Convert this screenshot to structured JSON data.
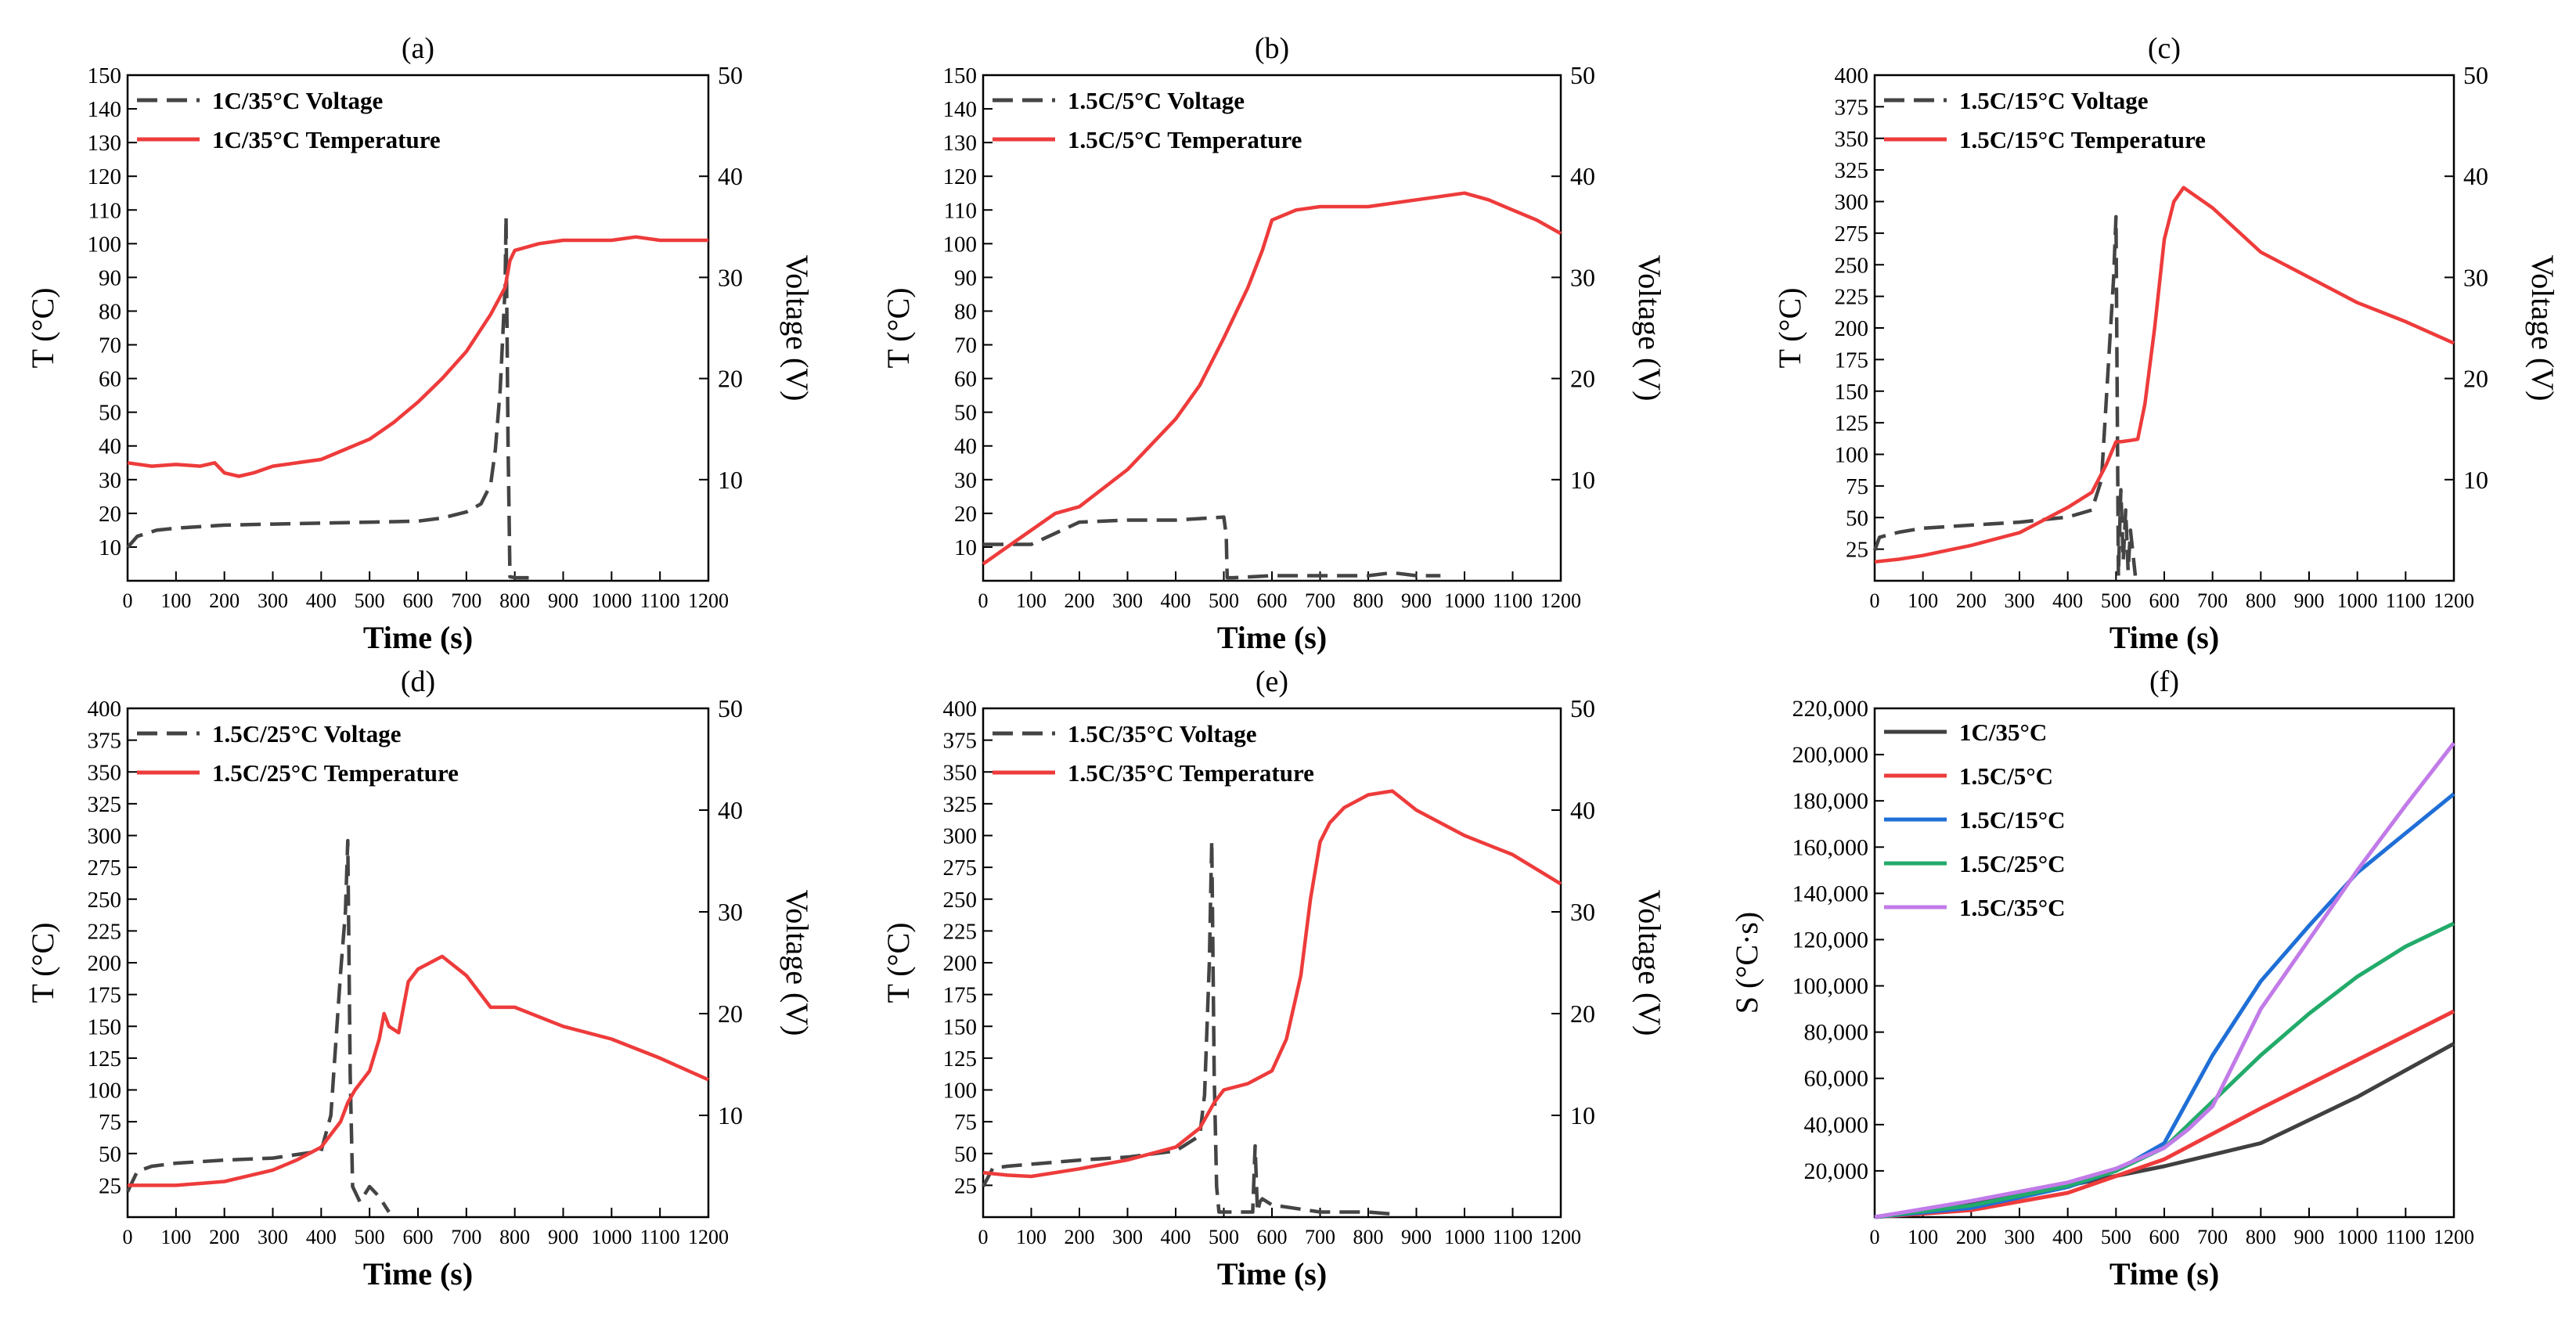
{
  "figure": {
    "colors": {
      "voltage": "#444444",
      "temperature": "#ee3b3b",
      "s35c_1c": "#404040",
      "s5c": "#ee3b3b",
      "s15c": "#1f6fd6",
      "s25c": "#22ab6a",
      "s35c": "#c17be8"
    }
  },
  "chart_data": [
    {
      "id": "a",
      "panel": "(a)",
      "type": "line",
      "title": "(a)",
      "xlabel": "Time (s)",
      "ylabel": "T (°C)",
      "y2label": "Voltage (V)",
      "xlim": [
        0,
        1200
      ],
      "ylim": [
        0,
        150
      ],
      "y2lim": [
        0,
        50
      ],
      "xticks": [
        "0",
        "100",
        "200",
        "300",
        "400",
        "500",
        "600",
        "700",
        "800",
        "900",
        "1000",
        "1100",
        "1200"
      ],
      "yticks": [
        "10",
        "20",
        "30",
        "40",
        "50",
        "60",
        "70",
        "80",
        "90",
        "100",
        "110",
        "120",
        "130",
        "140",
        "150"
      ],
      "y2ticks": [
        "10",
        "20",
        "30",
        "40",
        "50"
      ],
      "legend": [
        "1C/35°C Voltage",
        "1C/35°C Temperature"
      ],
      "series": [
        {
          "name": "1C/35°C Voltage",
          "axis": "right",
          "style": "dashed",
          "color": "#444444",
          "x": [
            0,
            20,
            60,
            100,
            200,
            300,
            400,
            500,
            600,
            650,
            700,
            730,
            750,
            760,
            770,
            775,
            780,
            782,
            786,
            790,
            800,
            830
          ],
          "y": [
            3.3,
            4.4,
            5.0,
            5.2,
            5.5,
            5.6,
            5.7,
            5.8,
            5.9,
            6.2,
            6.8,
            7.6,
            9.5,
            13,
            19,
            24,
            29,
            36,
            14,
            0.4,
            0.3,
            0.3
          ]
        },
        {
          "name": "1C/35°C Temperature",
          "axis": "left",
          "style": "solid",
          "color": "#ee3b3b",
          "x": [
            0,
            50,
            100,
            150,
            180,
            200,
            230,
            260,
            300,
            350,
            400,
            450,
            500,
            550,
            600,
            650,
            700,
            750,
            780,
            790,
            800,
            850,
            900,
            1000,
            1050,
            1100,
            1200
          ],
          "y": [
            35,
            34,
            34.5,
            34,
            35,
            32,
            31,
            32,
            34,
            35,
            36,
            39,
            42,
            47,
            53,
            60,
            68,
            79,
            87,
            95,
            98,
            100,
            101,
            101,
            102,
            101,
            101
          ]
        }
      ]
    },
    {
      "id": "b",
      "panel": "(b)",
      "type": "line",
      "title": "(b)",
      "xlabel": "Time (s)",
      "ylabel": "T (°C)",
      "y2label": "Voltage (V)",
      "xlim": [
        0,
        1200
      ],
      "ylim": [
        0,
        150
      ],
      "y2lim": [
        0,
        50
      ],
      "xticks": [
        "0",
        "100",
        "200",
        "300",
        "400",
        "500",
        "600",
        "700",
        "800",
        "900",
        "1000",
        "1100",
        "1200"
      ],
      "yticks": [
        "10",
        "20",
        "30",
        "40",
        "50",
        "60",
        "70",
        "80",
        "90",
        "100",
        "110",
        "120",
        "130",
        "140",
        "150"
      ],
      "y2ticks": [
        "10",
        "20",
        "30",
        "40",
        "50"
      ],
      "legend": [
        "1.5C/5°C Voltage",
        "1.5C/5°C Temperature"
      ],
      "series": [
        {
          "name": "1.5C/5°C Voltage",
          "axis": "right",
          "style": "dashed",
          "color": "#444444",
          "x": [
            0,
            100,
            200,
            300,
            400,
            500,
            505,
            507,
            520,
            600,
            700,
            800,
            850,
            900,
            950
          ],
          "y": [
            3.6,
            3.6,
            5.8,
            6.0,
            6.0,
            6.3,
            4.5,
            0.3,
            0.3,
            0.5,
            0.5,
            0.5,
            0.8,
            0.5,
            0.5
          ]
        },
        {
          "name": "1.5C/5°C Temperature",
          "axis": "left",
          "style": "solid",
          "color": "#ee3b3b",
          "x": [
            0,
            50,
            100,
            150,
            200,
            300,
            400,
            450,
            500,
            550,
            580,
            600,
            650,
            700,
            800,
            900,
            1000,
            1050,
            1100,
            1150,
            1200
          ],
          "y": [
            5,
            10,
            15,
            20,
            22,
            33,
            48,
            58,
            72,
            87,
            98,
            107,
            110,
            111,
            111,
            113,
            115,
            113,
            110,
            107,
            103
          ]
        }
      ]
    },
    {
      "id": "c",
      "panel": "(c)",
      "type": "line",
      "title": "(c)",
      "xlabel": "Time (s)",
      "ylabel": "T (°C)",
      "y2label": "Voltage (V)",
      "xlim": [
        0,
        1200
      ],
      "ylim": [
        0,
        400
      ],
      "y2lim": [
        0,
        50
      ],
      "xticks": [
        "0",
        "100",
        "200",
        "300",
        "400",
        "500",
        "600",
        "700",
        "800",
        "900",
        "1000",
        "1100",
        "1200"
      ],
      "yticks": [
        "25",
        "50",
        "75",
        "100",
        "125",
        "150",
        "175",
        "200",
        "225",
        "250",
        "275",
        "300",
        "325",
        "350",
        "375",
        "400"
      ],
      "y2ticks": [
        "10",
        "20",
        "30",
        "40",
        "50"
      ],
      "legend": [
        "1.5C/15°C Voltage",
        "1.5C/15°C Temperature"
      ],
      "series": [
        {
          "name": "1.5C/15°C Voltage",
          "axis": "right",
          "style": "dashed",
          "color": "#444444",
          "x": [
            0,
            10,
            50,
            100,
            200,
            300,
            400,
            450,
            470,
            480,
            490,
            495,
            500,
            505,
            510,
            515,
            520,
            525,
            530,
            540
          ],
          "y": [
            3.0,
            4.3,
            4.8,
            5.2,
            5.5,
            5.8,
            6.3,
            7.0,
            10,
            18,
            26,
            30,
            36,
            0.5,
            9,
            2,
            7,
            1,
            5,
            0.5
          ]
        },
        {
          "name": "1.5C/15°C Temperature",
          "axis": "left",
          "style": "solid",
          "color": "#ee3b3b",
          "x": [
            0,
            50,
            100,
            200,
            300,
            350,
            400,
            450,
            480,
            500,
            510,
            530,
            545,
            560,
            580,
            600,
            620,
            640,
            700,
            800,
            900,
            1000,
            1100,
            1200
          ],
          "y": [
            15,
            17,
            20,
            28,
            38,
            48,
            58,
            70,
            92,
            110,
            110,
            111,
            112,
            140,
            200,
            270,
            300,
            311,
            295,
            260,
            240,
            220,
            205,
            188
          ]
        }
      ]
    },
    {
      "id": "d",
      "panel": "(d)",
      "type": "line",
      "title": "(d)",
      "xlabel": "Time (s)",
      "ylabel": "T (°C)",
      "y2label": "Voltage (V)",
      "xlim": [
        0,
        1200
      ],
      "ylim": [
        0,
        400
      ],
      "y2lim": [
        0,
        50
      ],
      "xticks": [
        "0",
        "100",
        "200",
        "300",
        "400",
        "500",
        "600",
        "700",
        "800",
        "900",
        "1000",
        "1100",
        "1200"
      ],
      "yticks": [
        "25",
        "50",
        "75",
        "100",
        "125",
        "150",
        "175",
        "200",
        "225",
        "250",
        "275",
        "300",
        "325",
        "350",
        "375",
        "400"
      ],
      "y2ticks": [
        "10",
        "20",
        "30",
        "40",
        "50"
      ],
      "legend": [
        "1.5C/25°C Voltage",
        "1.5C/25°C Temperature"
      ],
      "series": [
        {
          "name": "1.5C/25°C Voltage",
          "axis": "right",
          "style": "dashed",
          "color": "#444444",
          "x": [
            0,
            20,
            50,
            100,
            200,
            300,
            400,
            420,
            430,
            440,
            450,
            455,
            460,
            465,
            480,
            500,
            520,
            540
          ],
          "y": [
            2.5,
            4.5,
            5.0,
            5.3,
            5.6,
            5.8,
            6.5,
            10,
            17,
            24,
            30,
            37,
            14,
            3,
            1.5,
            3,
            2,
            0.5
          ]
        },
        {
          "name": "1.5C/25°C Temperature",
          "axis": "left",
          "style": "solid",
          "color": "#ee3b3b",
          "x": [
            0,
            100,
            200,
            300,
            350,
            400,
            440,
            455,
            470,
            500,
            520,
            530,
            540,
            560,
            580,
            600,
            650,
            700,
            750,
            800,
            900,
            1000,
            1100,
            1200
          ],
          "y": [
            25,
            25,
            28,
            37,
            45,
            55,
            75,
            90,
            100,
            115,
            140,
            160,
            150,
            145,
            185,
            195,
            205,
            190,
            165,
            165,
            150,
            140,
            125,
            108
          ]
        }
      ]
    },
    {
      "id": "e",
      "panel": "(e)",
      "type": "line",
      "title": "(e)",
      "xlabel": "Time (s)",
      "ylabel": "T (°C)",
      "y2label": "Voltage (V)",
      "xlim": [
        0,
        1200
      ],
      "ylim": [
        0,
        400
      ],
      "y2lim": [
        0,
        50
      ],
      "xticks": [
        "0",
        "100",
        "200",
        "300",
        "400",
        "500",
        "600",
        "700",
        "800",
        "900",
        "1000",
        "1100",
        "1200"
      ],
      "yticks": [
        "25",
        "50",
        "75",
        "100",
        "125",
        "150",
        "175",
        "200",
        "225",
        "250",
        "275",
        "300",
        "325",
        "350",
        "375",
        "400"
      ],
      "y2ticks": [
        "10",
        "20",
        "30",
        "40",
        "50"
      ],
      "legend": [
        "1.5C/35°C Voltage",
        "1.5C/35°C Temperature"
      ],
      "series": [
        {
          "name": "1.5C/35°C Voltage",
          "axis": "right",
          "style": "dashed",
          "color": "#444444",
          "x": [
            0,
            20,
            50,
            100,
            200,
            300,
            400,
            450,
            460,
            470,
            475,
            480,
            485,
            490,
            520,
            560,
            565,
            570,
            575,
            580,
            600,
            700,
            800,
            850
          ],
          "y": [
            3.0,
            4.8,
            5.0,
            5.2,
            5.6,
            5.9,
            6.5,
            8,
            12,
            25,
            37,
            14,
            3,
            0.5,
            0.5,
            0.5,
            7,
            0.5,
            1.5,
            1.8,
            1.2,
            0.5,
            0.5,
            0.3
          ]
        },
        {
          "name": "1.5C/35°C Temperature",
          "axis": "left",
          "style": "solid",
          "color": "#ee3b3b",
          "x": [
            0,
            50,
            100,
            200,
            300,
            400,
            450,
            480,
            500,
            550,
            600,
            630,
            660,
            680,
            700,
            720,
            750,
            800,
            850,
            900,
            1000,
            1100,
            1200
          ],
          "y": [
            35,
            33,
            32,
            38,
            45,
            55,
            70,
            90,
            100,
            105,
            115,
            140,
            190,
            250,
            295,
            310,
            322,
            332,
            335,
            320,
            300,
            285,
            262
          ]
        }
      ]
    },
    {
      "id": "f",
      "panel": "(f)",
      "type": "line",
      "title": "(f)",
      "xlabel": "Time (s)",
      "ylabel": "S (°C·s)",
      "xlim": [
        0,
        1200
      ],
      "ylim": [
        0,
        220000
      ],
      "xticks": [
        "0",
        "100",
        "200",
        "300",
        "400",
        "500",
        "600",
        "700",
        "800",
        "900",
        "1000",
        "1100",
        "1200"
      ],
      "yticks": [
        "20,000",
        "40,000",
        "60,000",
        "80,000",
        "100,000",
        "120,000",
        "140,000",
        "160,000",
        "180,000",
        "200,000",
        "220,000"
      ],
      "legend": [
        "1C/35°C",
        "1.5C/5°C",
        "1.5C/15°C",
        "1.5C/25°C",
        "1.5C/35°C"
      ],
      "series": [
        {
          "name": "1C/35°C",
          "color": "#404040",
          "x": [
            0,
            200,
            400,
            600,
            800,
            1000,
            1200
          ],
          "y": [
            0,
            6600,
            13600,
            22000,
            32000,
            52000,
            75000
          ]
        },
        {
          "name": "1.5C/5°C",
          "color": "#ee3b3b",
          "x": [
            0,
            200,
            400,
            600,
            800,
            1000,
            1200
          ],
          "y": [
            0,
            3000,
            10500,
            25000,
            47000,
            68000,
            89000
          ]
        },
        {
          "name": "1.5C/15°C",
          "color": "#1f6fd6",
          "x": [
            0,
            200,
            400,
            500,
            600,
            700,
            800,
            900,
            1000,
            1100,
            1200
          ],
          "y": [
            0,
            4000,
            13000,
            20000,
            32000,
            70000,
            102000,
            126000,
            149000,
            166000,
            183000
          ]
        },
        {
          "name": "1.5C/25°C",
          "color": "#22ab6a",
          "x": [
            0,
            200,
            400,
            500,
            600,
            700,
            800,
            900,
            1000,
            1100,
            1200
          ],
          "y": [
            0,
            5000,
            13500,
            20000,
            30000,
            50000,
            70000,
            88000,
            104000,
            117000,
            127000
          ]
        },
        {
          "name": "1.5C/35°C",
          "color": "#c17be8",
          "x": [
            0,
            200,
            400,
            500,
            600,
            650,
            700,
            800,
            900,
            1000,
            1100,
            1200
          ],
          "y": [
            0,
            7000,
            15000,
            21000,
            30000,
            38000,
            48000,
            90000,
            120000,
            150000,
            178000,
            205000
          ]
        }
      ]
    }
  ]
}
